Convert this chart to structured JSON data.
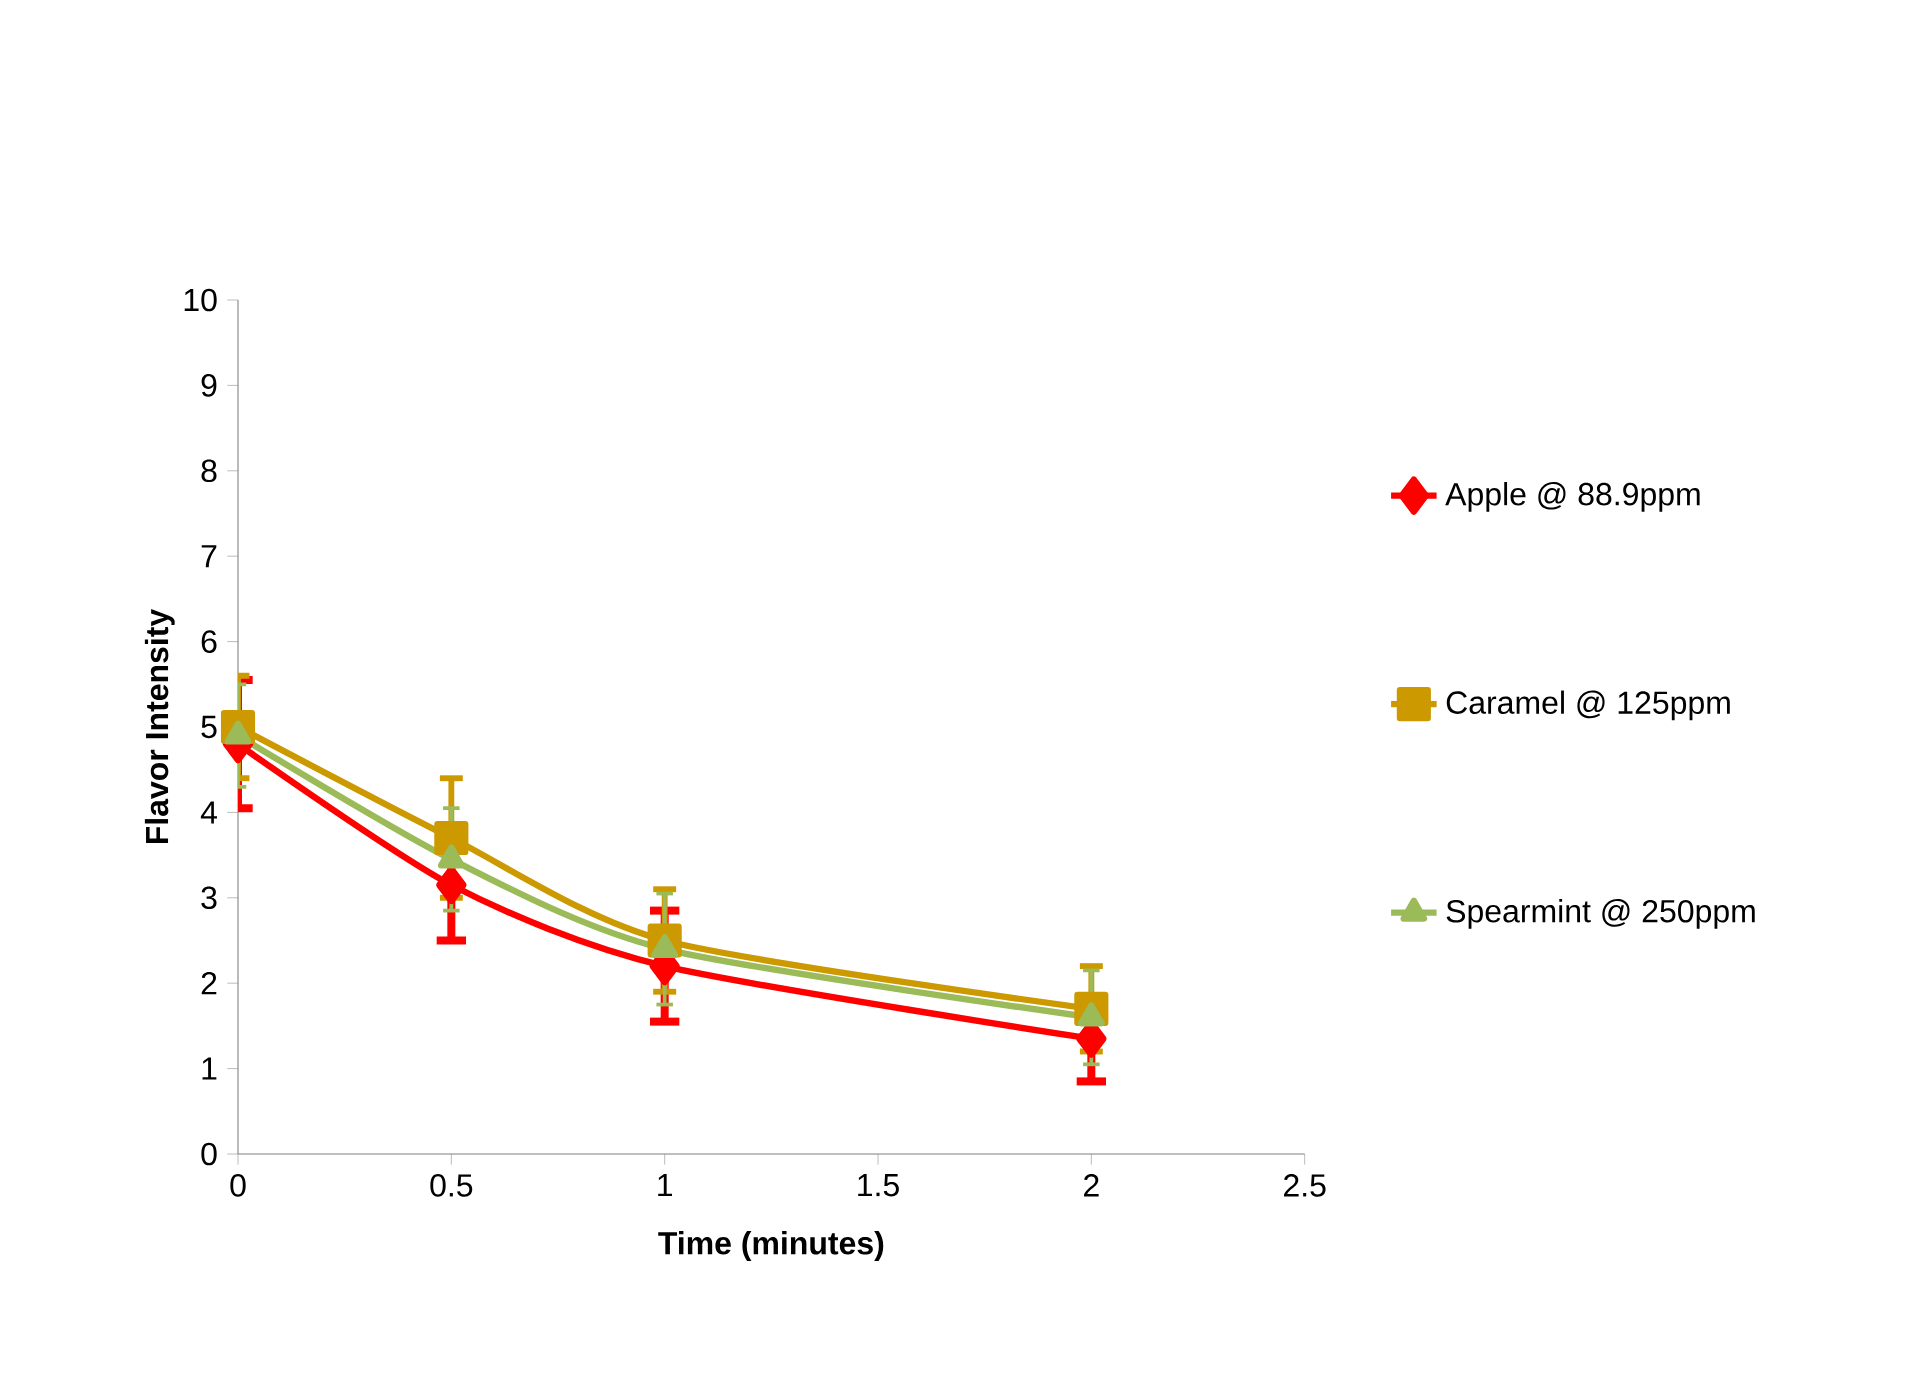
{
  "chart_data": {
    "type": "line",
    "xlabel": "Time (minutes)",
    "ylabel": "Flavor Intensity",
    "x": [
      0,
      0.5,
      1,
      2
    ],
    "xlim": [
      0,
      2.5
    ],
    "xticks": [
      0,
      0.5,
      1,
      1.5,
      2,
      2.5
    ],
    "ylim": [
      0,
      10
    ],
    "yticks": [
      0,
      1,
      2,
      3,
      4,
      5,
      6,
      7,
      8,
      9,
      10
    ],
    "grid": false,
    "legend": "right",
    "series": [
      {
        "name": "Apple @ 88.9ppm",
        "color": "#ff0000",
        "marker": "diamond",
        "values": [
          4.8,
          3.15,
          2.2,
          1.35
        ],
        "errors": [
          0.75,
          0.65,
          0.65,
          0.5
        ]
      },
      {
        "name": "Caramel @ 125ppm",
        "color": "#cc9900",
        "marker": "square",
        "values": [
          5.0,
          3.7,
          2.5,
          1.7
        ],
        "errors": [
          0.6,
          0.7,
          0.6,
          0.5
        ]
      },
      {
        "name": "Spearmint @ 250ppm",
        "color": "#9bbb59",
        "marker": "triangle",
        "values": [
          4.9,
          3.45,
          2.4,
          1.6
        ],
        "errors": [
          0.6,
          0.6,
          0.65,
          0.55
        ]
      }
    ]
  }
}
